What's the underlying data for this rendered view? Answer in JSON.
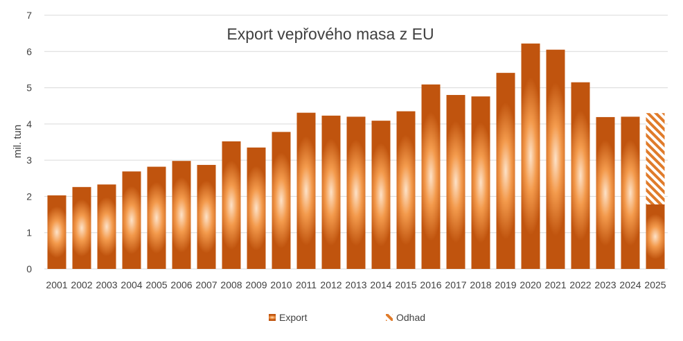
{
  "chart_data": {
    "type": "bar",
    "title": "Export vepřového masa z EU",
    "xlabel": "",
    "ylabel": "mil. tun",
    "ylim": [
      0,
      7
    ],
    "yticks": [
      0,
      1,
      2,
      3,
      4,
      5,
      6,
      7
    ],
    "grid": true,
    "legend_position": "bottom",
    "categories": [
      "2001",
      "2002",
      "2003",
      "2004",
      "2005",
      "2006",
      "2007",
      "2008",
      "2009",
      "2010",
      "2011",
      "2012",
      "2013",
      "2014",
      "2015",
      "2016",
      "2017",
      "2018",
      "2019",
      "2020",
      "2021",
      "2022",
      "2023",
      "2024",
      "2025"
    ],
    "series": [
      {
        "name": "Export",
        "values": [
          2.03,
          2.26,
          2.33,
          2.69,
          2.82,
          2.98,
          2.87,
          3.52,
          3.35,
          3.78,
          4.31,
          4.23,
          4.2,
          4.09,
          4.35,
          5.09,
          4.8,
          4.76,
          5.41,
          6.22,
          6.05,
          5.15,
          4.19,
          4.2,
          1.78
        ]
      },
      {
        "name": "Odhad",
        "values": [
          null,
          null,
          null,
          null,
          null,
          null,
          null,
          null,
          null,
          null,
          null,
          null,
          null,
          null,
          null,
          null,
          null,
          null,
          null,
          null,
          null,
          null,
          null,
          null,
          4.3
        ]
      }
    ],
    "colors": {
      "bar_dark": "#c0540e",
      "bar_mid": "#f39a4c",
      "bar_light": "#fde2c8",
      "hatch": "#e07b2a",
      "grid": "#d9d9d9",
      "text": "#404040"
    }
  }
}
